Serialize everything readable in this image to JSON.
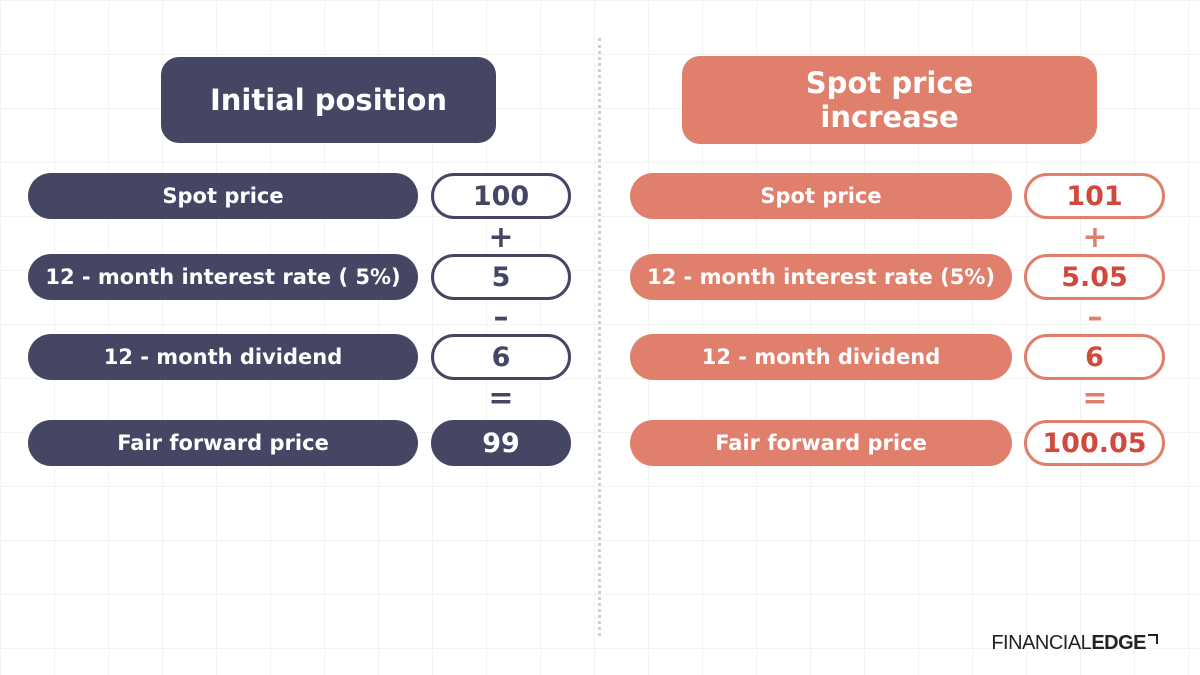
{
  "colors": {
    "navy": "#454564",
    "salmon": "#E07F6C",
    "salmon_text": "#D2493C"
  },
  "left": {
    "title": "Initial position",
    "rows": [
      {
        "label": "Spot price",
        "value": "100"
      },
      {
        "label": "12 - month interest rate ( 5%)",
        "value": "5"
      },
      {
        "label": "12 - month dividend",
        "value": "6"
      },
      {
        "label": "Fair forward price",
        "value": "99"
      }
    ],
    "operators": [
      "+",
      "–",
      "="
    ]
  },
  "right": {
    "title": "Spot price increase",
    "rows": [
      {
        "label": "Spot price",
        "value": "101"
      },
      {
        "label": "12 - month interest rate (5%)",
        "value": "5.05"
      },
      {
        "label": "12 - month dividend",
        "value": "6"
      },
      {
        "label": "Fair forward price",
        "value": "100.05"
      }
    ],
    "operators": [
      "+",
      "–",
      "="
    ]
  },
  "brand": {
    "part1": "FINANCIAL",
    "part2": "EDGE"
  }
}
